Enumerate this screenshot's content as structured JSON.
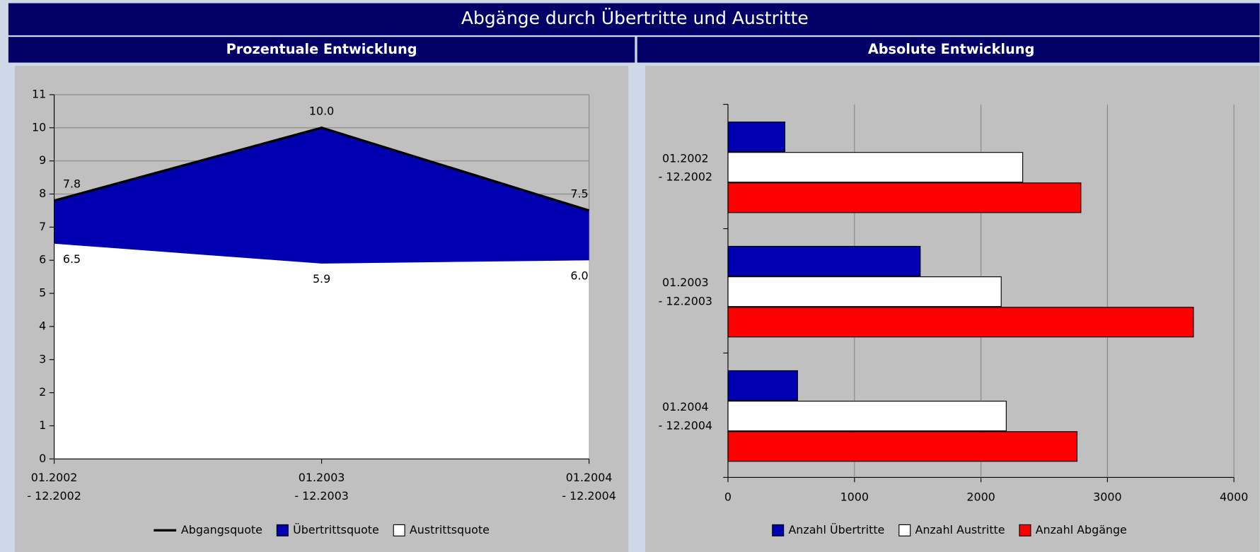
{
  "header": {
    "title": "Abgänge durch Übertritte und Austritte"
  },
  "chart_data": [
    {
      "type": "area",
      "title": "Prozentuale Entwicklung",
      "categories": [
        [
          "01.2002",
          "- 12.2002"
        ],
        [
          "01.2003",
          "- 12.2003"
        ],
        [
          "01.2004",
          "- 12.2004"
        ]
      ],
      "series": [
        {
          "name": "Abgangsquote",
          "type": "line",
          "color": "#000000",
          "values": [
            7.8,
            10.0,
            7.5
          ],
          "value_labels": [
            "7.8",
            "10.0",
            "7.5"
          ]
        },
        {
          "name": "Übertrittsquote",
          "type": "area",
          "color": "#0000b0",
          "values": [
            1.3,
            4.1,
            1.5
          ]
        },
        {
          "name": "Austrittsquote",
          "type": "area",
          "color": "#ffffff",
          "values": [
            6.5,
            5.9,
            6.0
          ],
          "value_labels": [
            "6.5",
            "5.9",
            "6.0"
          ]
        }
      ],
      "stacked": true,
      "ylim": [
        0,
        11
      ],
      "yticks": [
        0,
        1,
        2,
        3,
        4,
        5,
        6,
        7,
        8,
        9,
        10,
        11
      ],
      "grid": true,
      "legend": "bottom"
    },
    {
      "type": "bar",
      "orientation": "horizontal",
      "title": "Absolute Entwicklung",
      "categories": [
        [
          "01.2002",
          "- 12.2002"
        ],
        [
          "01.2003",
          "- 12.2003"
        ],
        [
          "01.2004",
          "- 12.2004"
        ]
      ],
      "series": [
        {
          "name": "Anzahl Übertritte",
          "color": "#0000b0",
          "values": [
            450,
            1520,
            550
          ]
        },
        {
          "name": "Anzahl Austritte",
          "color": "#ffffff",
          "values": [
            2330,
            2160,
            2200
          ]
        },
        {
          "name": "Anzahl Abgänge",
          "color": "#ff0000",
          "values": [
            2790,
            3680,
            2760
          ]
        }
      ],
      "xlim": [
        0,
        4000
      ],
      "xticks": [
        0,
        1000,
        2000,
        3000,
        4000
      ],
      "grid": true,
      "legend": "bottom"
    }
  ]
}
